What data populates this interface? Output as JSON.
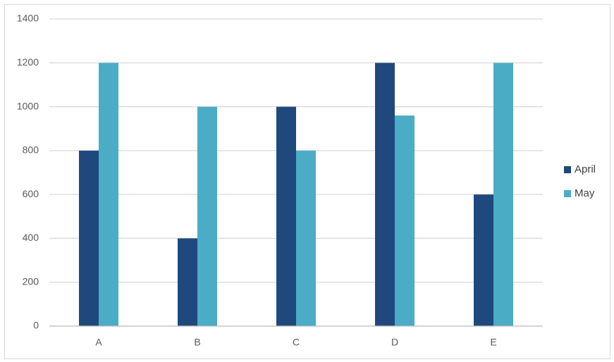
{
  "chart_data": {
    "type": "bar",
    "categories": [
      "A",
      "B",
      "C",
      "D",
      "E"
    ],
    "series": [
      {
        "name": "April",
        "color": "#1f497d",
        "values": [
          800,
          400,
          1000,
          1200,
          600
        ]
      },
      {
        "name": "May",
        "color": "#4bacc6",
        "values": [
          1200,
          1000,
          800,
          960,
          1200
        ]
      }
    ],
    "ylim": [
      0,
      1400
    ],
    "yticks": [
      0,
      200,
      400,
      600,
      800,
      1000,
      1200,
      1400
    ],
    "grid": true,
    "legend": "right"
  }
}
